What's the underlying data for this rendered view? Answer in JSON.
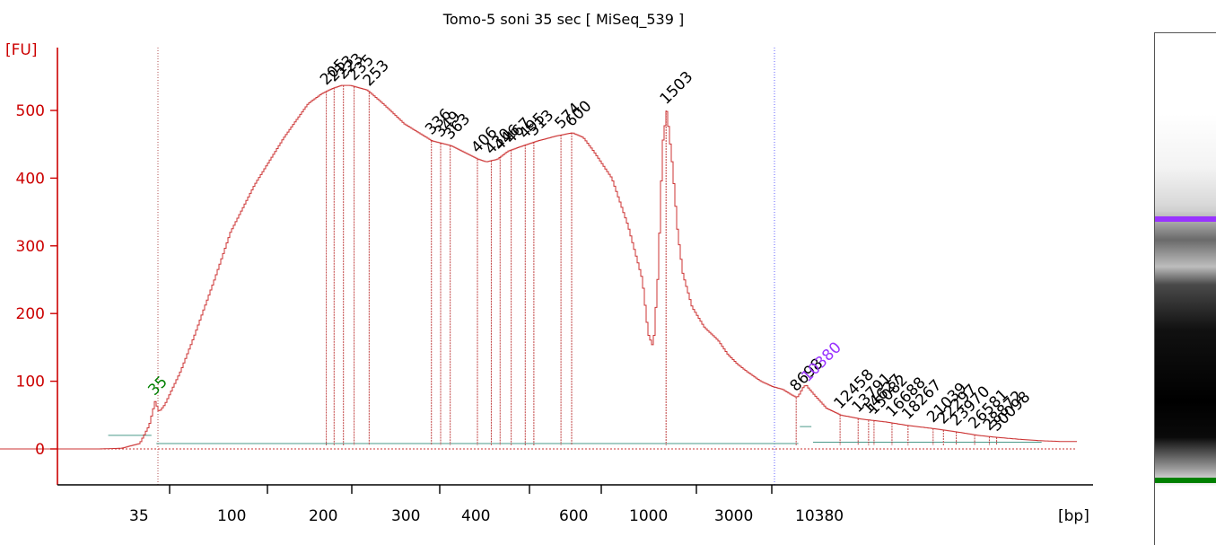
{
  "chart_data": {
    "type": "line",
    "title": "Tomo-5 soni 35 sec  [ MiSeq_539 ]",
    "ylabel": "[FU]",
    "xlabel": "[bp]",
    "x_axis_ticks": [
      "35",
      "100",
      "200",
      "300",
      "400",
      "600",
      "1000",
      "3000",
      "10380"
    ],
    "y_axis_ticks": [
      0,
      100,
      200,
      300,
      400,
      500
    ],
    "ylim": [
      -50,
      600
    ],
    "colors": {
      "trace": "#cc3333",
      "axis": "#cc0000",
      "lower_marker": "#008000",
      "upper_marker": "#9933ff",
      "baseline": "#4a9a8a"
    },
    "lower_marker": {
      "label": "35",
      "bp": 35
    },
    "upper_marker": {
      "label": "10380",
      "bp": 10380
    },
    "series": [
      {
        "x": [
          20,
          25,
          30,
          33,
          35,
          37,
          40,
          50,
          60,
          80,
          100,
          120,
          150,
          180,
          200,
          210,
          220,
          230,
          250,
          270,
          300,
          336,
          363,
          380,
          406,
          420,
          440,
          460,
          490,
          520,
          560,
          600,
          650,
          700,
          800,
          900,
          1000,
          1100,
          1200,
          1300,
          1400,
          1503,
          1600,
          1700,
          1800,
          2000,
          2300,
          2700,
          3000,
          3500,
          4000,
          5000,
          6000,
          7000,
          8000,
          8698,
          9000,
          9500,
          10000,
          10380,
          10800,
          11500,
          12458,
          14000,
          16000,
          18000,
          21039,
          24000,
          27000,
          30098,
          35000,
          40000,
          45000,
          50000
        ],
        "values": [
          0,
          1,
          8,
          35,
          70,
          55,
          65,
          115,
          165,
          250,
          320,
          390,
          460,
          510,
          525,
          532,
          537,
          537,
          530,
          510,
          480,
          455,
          448,
          440,
          428,
          424,
          428,
          440,
          448,
          455,
          462,
          467,
          460,
          440,
          400,
          330,
          250,
          170,
          150,
          260,
          450,
          500,
          420,
          320,
          260,
          210,
          180,
          160,
          140,
          125,
          115,
          100,
          92,
          88,
          80,
          76,
          80,
          90,
          95,
          90,
          78,
          60,
          50,
          44,
          40,
          35,
          30,
          25,
          20,
          17,
          14,
          12,
          11,
          11
        ]
      }
    ],
    "peak_labels": [
      "35",
      "205",
      "213",
      "223",
      "235",
      "253",
      "336",
      "349",
      "363",
      "406",
      "430",
      "446",
      "467",
      "495",
      "513",
      "574",
      "600",
      "1503",
      "8698",
      "10380",
      "12458",
      "13791",
      "14627",
      "15082",
      "16688",
      "18267",
      "21039",
      "22297",
      "23970",
      "26581",
      "28872",
      "30098"
    ]
  }
}
